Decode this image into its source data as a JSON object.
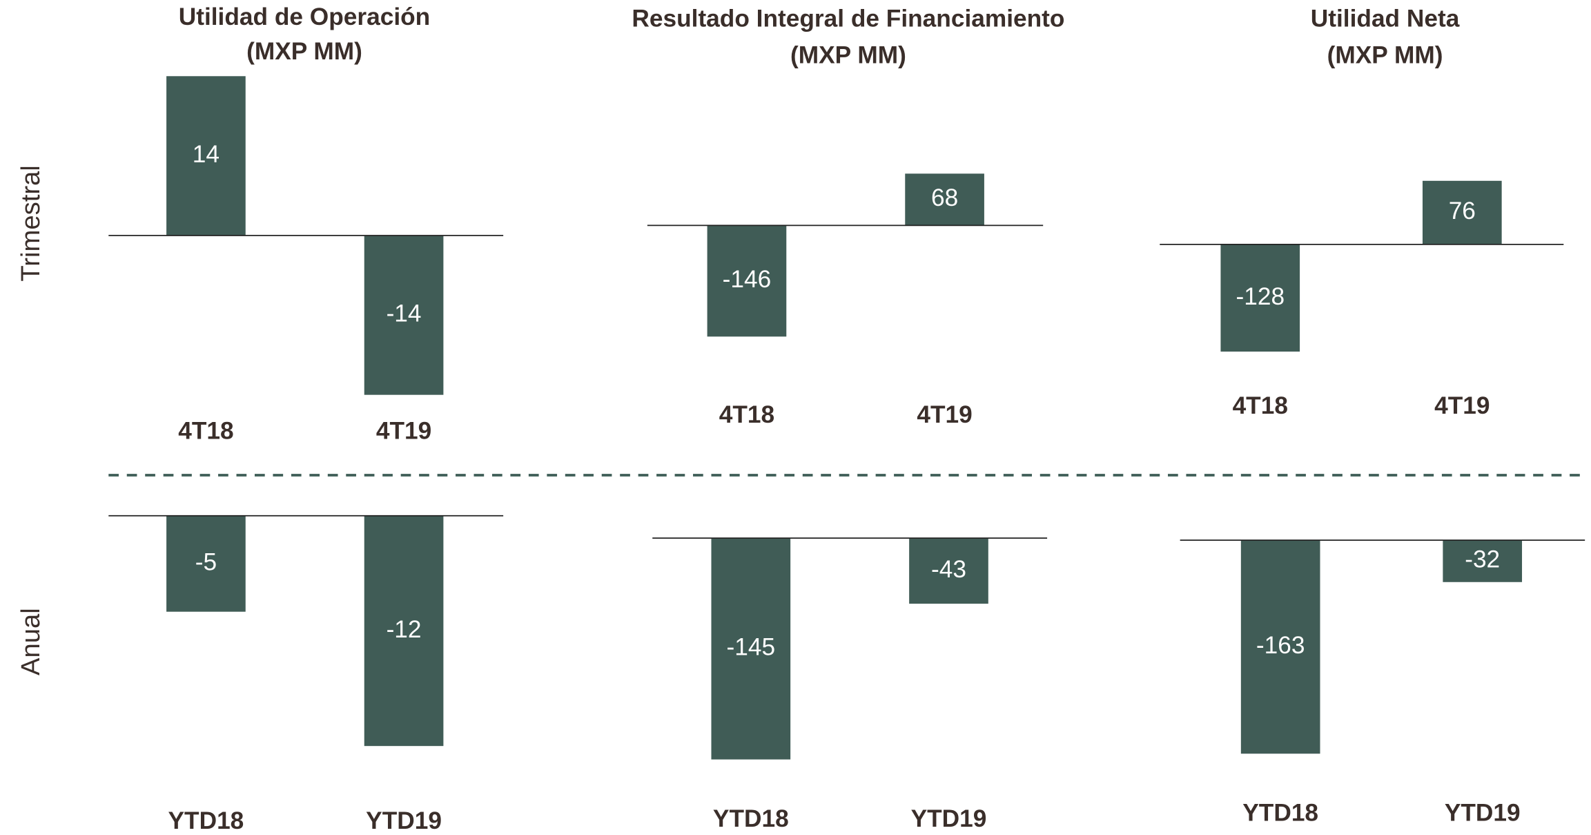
{
  "row_labels": [
    "Trimestral",
    "Anual"
  ],
  "chart_data": [
    {
      "type": "bar",
      "title": "Utilidad de Operación",
      "subtitle": "(MXP MM)",
      "categories": [
        "4T18",
        "4T19"
      ],
      "values": [
        14,
        -14
      ],
      "color": "#405c56",
      "ylim": [
        -14.1,
        14
      ]
    },
    {
      "type": "bar",
      "title": "Resultado Integral de Financiamiento",
      "subtitle": "(MXP MM)",
      "categories": [
        "4T18",
        "4T19"
      ],
      "values": [
        -146,
        68
      ],
      "color": "#405c56",
      "ylim": [
        -224,
        196
      ]
    },
    {
      "type": "bar",
      "title": "Utilidad Neta",
      "subtitle": "(MXP MM)",
      "categories": [
        "4T18",
        "4T19"
      ],
      "values": [
        -128,
        76
      ],
      "color": "#405c56",
      "ylim": [
        -181,
        201
      ]
    },
    {
      "type": "bar",
      "categories": [
        "YTD18",
        "YTD19"
      ],
      "values": [
        -5,
        -12
      ],
      "color": "#405c56",
      "ylim": [
        -12.7,
        0
      ]
    },
    {
      "type": "bar",
      "categories": [
        "YTD18",
        "YTD19"
      ],
      "values": [
        -145,
        -43
      ],
      "color": "#405c56",
      "ylim": [
        -145,
        14.6
      ]
    },
    {
      "type": "bar",
      "categories": [
        "YTD18",
        "YTD19"
      ],
      "values": [
        -163,
        -32
      ],
      "color": "#405c56",
      "ylim": [
        -167.4,
        18.6
      ]
    }
  ]
}
